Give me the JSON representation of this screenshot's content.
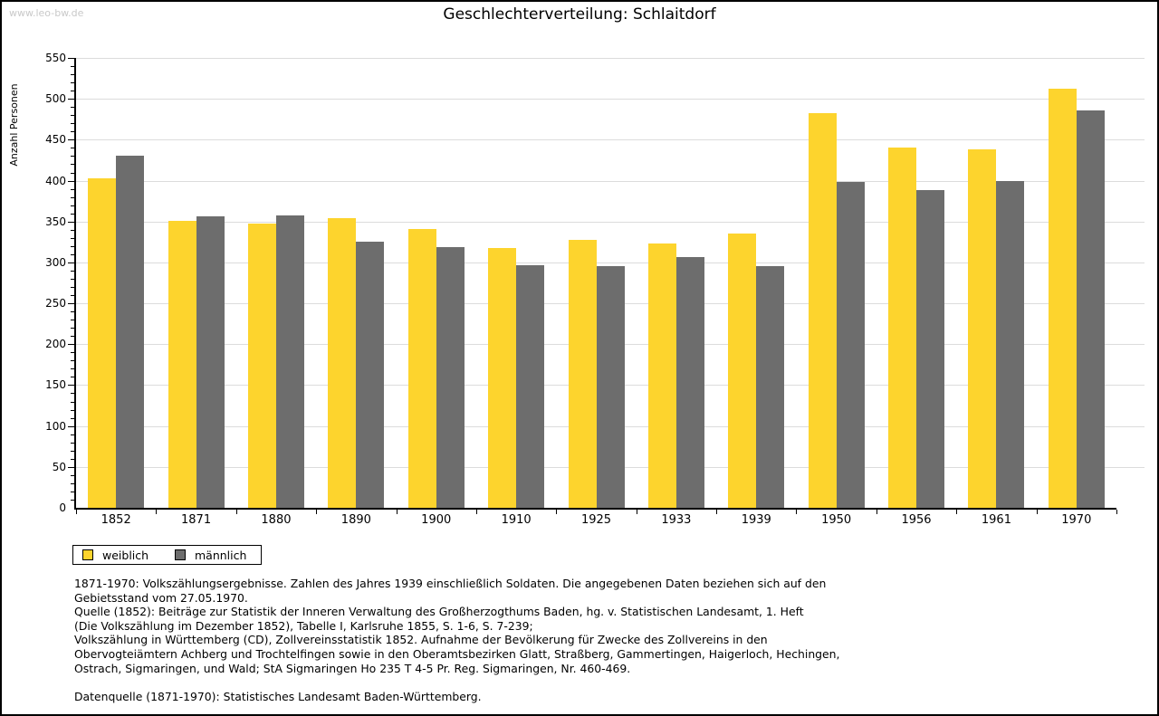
{
  "watermark": "www.leo-bw.de",
  "title": "Geschlechterverteilung: Schlaitdorf",
  "chart_data": {
    "type": "bar",
    "title": "Geschlechterverteilung: Schlaitdorf",
    "categories": [
      "1852",
      "1871",
      "1880",
      "1890",
      "1900",
      "1910",
      "1925",
      "1933",
      "1939",
      "1950",
      "1956",
      "1961",
      "1970"
    ],
    "series": [
      {
        "name": "weiblich",
        "color": "#fdd42d",
        "values": [
          403,
          351,
          348,
          354,
          341,
          318,
          328,
          323,
          335,
          483,
          440,
          438,
          512
        ]
      },
      {
        "name": "männlich",
        "color": "#6d6d6d",
        "values": [
          430,
          356,
          357,
          325,
          319,
          297,
          295,
          307,
          296,
          398,
          388,
          399,
          486
        ]
      }
    ],
    "xlabel": "",
    "ylabel": "Anzahl Personen",
    "ylim": [
      0,
      550
    ],
    "ytick_step": 50,
    "yminor_step": 10,
    "grid": true,
    "legend_position": "bottom-left",
    "colors": {
      "female_bar": "#fdd42d",
      "male_bar": "#6d6d6d",
      "gridline": "#dcdcdc",
      "axis": "#000000",
      "watermark": "#c9c9c9"
    }
  },
  "legend": {
    "items": [
      {
        "label": "weiblich",
        "color": "#fdd42d"
      },
      {
        "label": "männlich",
        "color": "#6d6d6d"
      }
    ]
  },
  "footnotes": [
    "1871-1970: Volkszählungsergebnisse. Zahlen des Jahres 1939 einschließlich Soldaten. Die angegebenen Daten beziehen sich auf den",
    "Gebietsstand vom 27.05.1970.",
    "Quelle (1852): Beiträge zur Statistik der Inneren Verwaltung des Großherzogthums Baden, hg. v. Statistischen Landesamt, 1. Heft",
    "(Die Volkszählung im Dezember 1852), Tabelle I, Karlsruhe 1855, S. 1-6, S. 7-239;",
    "Volkszählung in Württemberg (CD), Zollvereinsstatistik 1852. Aufnahme der Bevölkerung für Zwecke des Zollvereins in den",
    "Obervogteiämtern Achberg und Trochtelfingen sowie in den Oberamtsbezirken Glatt, Straßberg, Gammertingen, Haigerloch, Hechingen,",
    "Ostrach, Sigmaringen, und Wald; StA Sigmaringen Ho 235 T 4-5 Pr. Reg. Sigmaringen, Nr. 460-469.",
    "",
    "Datenquelle (1871-1970): Statistisches Landesamt Baden-Württemberg."
  ]
}
